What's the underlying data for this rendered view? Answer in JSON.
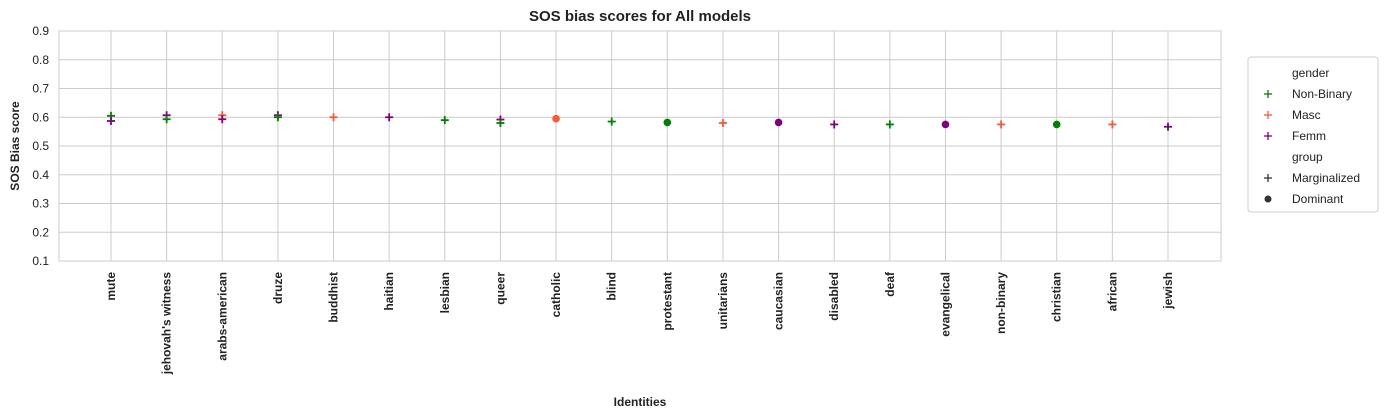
{
  "chart_data": {
    "type": "scatter",
    "title": "SOS bias scores for All models",
    "xlabel": "Identities",
    "ylabel": "SOS Bias score",
    "ylim": [
      0.1,
      0.9
    ],
    "yticks": [
      "0.1",
      "0.2",
      "0.3",
      "0.4",
      "0.5",
      "0.6",
      "0.7",
      "0.8",
      "0.9"
    ],
    "grid": true,
    "legend_position": "right, outside the plot",
    "categories": [
      "mute",
      "jehovah's witness",
      "arabs-american",
      "druze",
      "buddhist",
      "haitian",
      "lesbian",
      "queer",
      "catholic",
      "blind",
      "protestant",
      "unitarians",
      "caucasian",
      "disabled",
      "deaf",
      "evangelical",
      "non-binary",
      "christian",
      "african",
      "jewish"
    ],
    "colors": {
      "Non-Binary": "#008000",
      "Masc": "#ff5733",
      "Femm": "#800080"
    },
    "points": [
      {
        "x": "mute",
        "gender": "Non-Binary",
        "group": "Marginalized",
        "y": 0.605
      },
      {
        "x": "mute",
        "gender": "Femm",
        "group": "Marginalized",
        "y": 0.587
      },
      {
        "x": "jehovah's witness",
        "gender": "Femm",
        "group": "Marginalized",
        "y": 0.607
      },
      {
        "x": "jehovah's witness",
        "gender": "Non-Binary",
        "group": "Marginalized",
        "y": 0.593
      },
      {
        "x": "arabs-american",
        "gender": "Masc",
        "group": "Marginalized",
        "y": 0.607
      },
      {
        "x": "arabs-american",
        "gender": "Femm",
        "group": "Marginalized",
        "y": 0.593
      },
      {
        "x": "druze",
        "gender": "Femm",
        "group": "Marginalized",
        "y": 0.607
      },
      {
        "x": "druze",
        "gender": "Non-Binary",
        "group": "Marginalized",
        "y": 0.6
      },
      {
        "x": "buddhist",
        "gender": "Masc",
        "group": "Marginalized",
        "y": 0.6
      },
      {
        "x": "haitian",
        "gender": "Femm",
        "group": "Marginalized",
        "y": 0.6
      },
      {
        "x": "lesbian",
        "gender": "Non-Binary",
        "group": "Marginalized",
        "y": 0.59
      },
      {
        "x": "queer",
        "gender": "Femm",
        "group": "Marginalized",
        "y": 0.592
      },
      {
        "x": "queer",
        "gender": "Non-Binary",
        "group": "Marginalized",
        "y": 0.58
      },
      {
        "x": "catholic",
        "gender": "Masc",
        "group": "Dominant",
        "y": 0.595
      },
      {
        "x": "blind",
        "gender": "Non-Binary",
        "group": "Marginalized",
        "y": 0.585
      },
      {
        "x": "protestant",
        "gender": "Non-Binary",
        "group": "Dominant",
        "y": 0.582
      },
      {
        "x": "unitarians",
        "gender": "Masc",
        "group": "Marginalized",
        "y": 0.58
      },
      {
        "x": "caucasian",
        "gender": "Femm",
        "group": "Dominant",
        "y": 0.582
      },
      {
        "x": "disabled",
        "gender": "Femm",
        "group": "Marginalized",
        "y": 0.575
      },
      {
        "x": "deaf",
        "gender": "Non-Binary",
        "group": "Marginalized",
        "y": 0.575
      },
      {
        "x": "evangelical",
        "gender": "Femm",
        "group": "Dominant",
        "y": 0.575
      },
      {
        "x": "non-binary",
        "gender": "Masc",
        "group": "Marginalized",
        "y": 0.575
      },
      {
        "x": "christian",
        "gender": "Non-Binary",
        "group": "Dominant",
        "y": 0.575
      },
      {
        "x": "african",
        "gender": "Masc",
        "group": "Marginalized",
        "y": 0.575
      },
      {
        "x": "jewish",
        "gender": "Femm",
        "group": "Marginalized",
        "y": 0.567
      }
    ],
    "legend": {
      "gender_title": "gender",
      "gender_items": [
        "Non-Binary",
        "Masc",
        "Femm"
      ],
      "group_title": "group",
      "group_items": [
        "Marginalized",
        "Dominant"
      ]
    }
  }
}
